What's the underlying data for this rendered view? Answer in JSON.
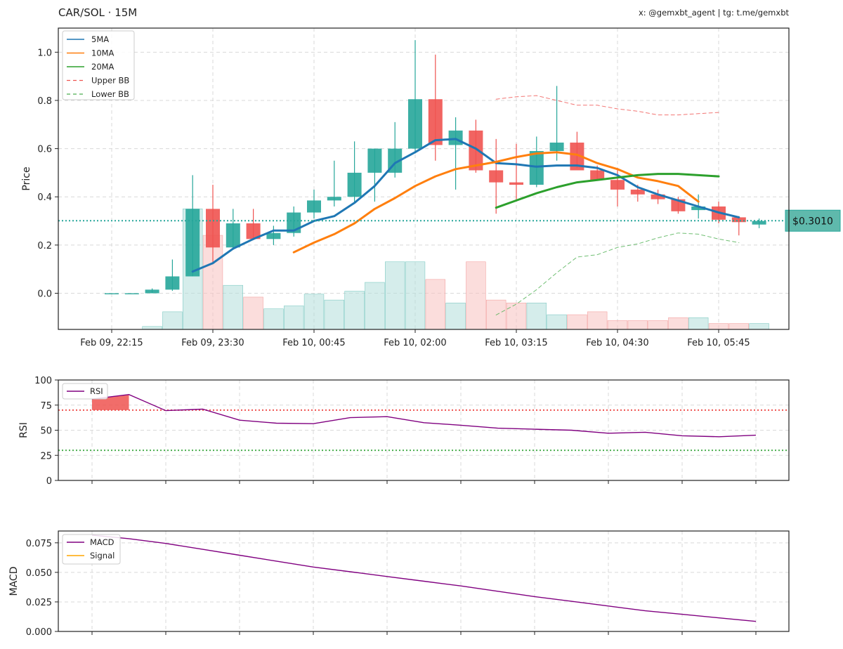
{
  "header": {
    "title": "CAR/SOL · 15M",
    "credits": "x: @gemxbt_agent | tg: t.me/gemxbt"
  },
  "colors": {
    "up": "#26a69a",
    "down": "#ef5350",
    "ma5": "#1f77b4",
    "ma10": "#ff7f0e",
    "ma20": "#2ca02c",
    "upper_bb": "#ef5350",
    "lower_bb": "#4caf50",
    "rsi": "#800080",
    "macd": "#800080",
    "signal": "#ffa500",
    "price_line": "#26a69a",
    "grid": "#d9d9d9"
  },
  "chart_data": [
    {
      "type": "candlestick",
      "ylabel": "Price",
      "ylim": [
        -0.15,
        1.1
      ],
      "yticks": [
        "0.0",
        "0.2",
        "0.4",
        "0.6",
        "0.8",
        "1.0"
      ],
      "x_tick_labels": [
        "Feb 09, 22:15",
        "Feb 09, 23:30",
        "Feb 10, 00:45",
        "Feb 10, 02:00",
        "Feb 10, 03:15",
        "Feb 10, 04:30",
        "Feb 10, 05:45"
      ],
      "candle_interval": "15M",
      "first_candle_time": "Feb 09, 22:00",
      "candles": [
        {
          "o": 0.0,
          "h": 0.0,
          "l": 0.0,
          "c": 0.0
        },
        {
          "o": 0.0,
          "h": 0.0,
          "l": 0.0,
          "c": 0.0
        },
        {
          "o": 0.0,
          "h": 0.02,
          "l": 0.0,
          "c": 0.015
        },
        {
          "o": 0.015,
          "h": 0.14,
          "l": 0.01,
          "c": 0.07
        },
        {
          "o": 0.07,
          "h": 0.49,
          "l": 0.07,
          "c": 0.35
        },
        {
          "o": 0.35,
          "h": 0.45,
          "l": 0.13,
          "c": 0.19
        },
        {
          "o": 0.19,
          "h": 0.35,
          "l": 0.18,
          "c": 0.29
        },
        {
          "o": 0.29,
          "h": 0.35,
          "l": 0.22,
          "c": 0.225
        },
        {
          "o": 0.225,
          "h": 0.28,
          "l": 0.2,
          "c": 0.25
        },
        {
          "o": 0.25,
          "h": 0.36,
          "l": 0.235,
          "c": 0.335
        },
        {
          "o": 0.335,
          "h": 0.43,
          "l": 0.31,
          "c": 0.385
        },
        {
          "o": 0.385,
          "h": 0.55,
          "l": 0.36,
          "c": 0.4
        },
        {
          "o": 0.4,
          "h": 0.63,
          "l": 0.38,
          "c": 0.5
        },
        {
          "o": 0.5,
          "h": 0.6,
          "l": 0.38,
          "c": 0.6
        },
        {
          "o": 0.5,
          "h": 0.71,
          "l": 0.48,
          "c": 0.6
        },
        {
          "o": 0.6,
          "h": 1.05,
          "l": 0.58,
          "c": 0.805
        },
        {
          "o": 0.805,
          "h": 0.99,
          "l": 0.55,
          "c": 0.615
        },
        {
          "o": 0.615,
          "h": 0.73,
          "l": 0.43,
          "c": 0.675
        },
        {
          "o": 0.675,
          "h": 0.72,
          "l": 0.5,
          "c": 0.51
        },
        {
          "o": 0.51,
          "h": 0.64,
          "l": 0.33,
          "c": 0.46
        },
        {
          "o": 0.46,
          "h": 0.62,
          "l": 0.39,
          "c": 0.45
        },
        {
          "o": 0.45,
          "h": 0.65,
          "l": 0.44,
          "c": 0.59
        },
        {
          "o": 0.59,
          "h": 0.86,
          "l": 0.55,
          "c": 0.625
        },
        {
          "o": 0.625,
          "h": 0.67,
          "l": 0.52,
          "c": 0.51
        },
        {
          "o": 0.51,
          "h": 0.53,
          "l": 0.47,
          "c": 0.47
        },
        {
          "o": 0.47,
          "h": 0.52,
          "l": 0.36,
          "c": 0.43
        },
        {
          "o": 0.43,
          "h": 0.45,
          "l": 0.38,
          "c": 0.41
        },
        {
          "o": 0.41,
          "h": 0.43,
          "l": 0.37,
          "c": 0.39
        },
        {
          "o": 0.39,
          "h": 0.4,
          "l": 0.33,
          "c": 0.34
        },
        {
          "o": 0.345,
          "h": 0.41,
          "l": 0.31,
          "c": 0.36
        },
        {
          "o": 0.36,
          "h": 0.38,
          "l": 0.29,
          "c": 0.305
        },
        {
          "o": 0.315,
          "h": 0.32,
          "l": 0.24,
          "c": 0.295
        },
        {
          "o": 0.285,
          "h": 0.31,
          "l": 0.27,
          "c": 0.3
        }
      ],
      "volume": [
        0,
        0,
        0.01,
        0.06,
        0.41,
        0.32,
        0.15,
        0.11,
        0.07,
        0.08,
        0.12,
        0.1,
        0.13,
        0.16,
        0.23,
        0.23,
        0.17,
        0.09,
        0.23,
        0.1,
        0.09,
        0.09,
        0.05,
        0.05,
        0.06,
        0.03,
        0.03,
        0.03,
        0.04,
        0.04,
        0.02,
        0.02,
        0.02
      ],
      "series": [
        {
          "name": "5MA",
          "values": [
            null,
            null,
            null,
            null,
            0.09,
            0.125,
            0.185,
            0.225,
            0.26,
            0.26,
            0.3,
            0.32,
            0.375,
            0.445,
            0.54,
            0.585,
            0.635,
            0.64,
            0.6,
            0.54,
            0.535,
            0.525,
            0.53,
            0.53,
            0.52,
            0.49,
            0.44,
            0.41,
            0.385,
            0.36,
            0.335,
            0.315,
            null
          ]
        },
        {
          "name": "10MA",
          "values": [
            null,
            null,
            null,
            null,
            null,
            null,
            null,
            null,
            null,
            0.17,
            0.21,
            0.245,
            0.29,
            0.35,
            0.395,
            0.445,
            0.485,
            0.515,
            0.53,
            0.545,
            0.565,
            0.58,
            0.585,
            0.575,
            0.54,
            0.515,
            0.48,
            0.465,
            0.445,
            0.38,
            null,
            null,
            null
          ]
        },
        {
          "name": "20MA",
          "values": [
            null,
            null,
            null,
            null,
            null,
            null,
            null,
            null,
            null,
            null,
            null,
            null,
            null,
            null,
            null,
            null,
            null,
            null,
            null,
            0.355,
            0.385,
            0.415,
            0.44,
            0.46,
            0.47,
            0.48,
            0.49,
            0.495,
            0.495,
            0.49,
            0.485,
            null,
            null
          ]
        },
        {
          "name": "Upper BB",
          "values": [
            null,
            null,
            null,
            null,
            null,
            null,
            null,
            null,
            null,
            null,
            null,
            null,
            null,
            null,
            null,
            null,
            null,
            null,
            null,
            0.805,
            0.815,
            0.82,
            0.8,
            0.78,
            0.78,
            0.765,
            0.755,
            0.74,
            0.74,
            0.745,
            0.75,
            null,
            null
          ]
        },
        {
          "name": "Lower BB",
          "values": [
            null,
            null,
            null,
            null,
            null,
            null,
            null,
            null,
            null,
            null,
            null,
            null,
            null,
            null,
            null,
            null,
            null,
            null,
            null,
            -0.09,
            -0.045,
            0.015,
            0.085,
            0.15,
            0.16,
            0.19,
            0.205,
            0.23,
            0.25,
            0.245,
            0.225,
            0.21,
            null
          ]
        }
      ],
      "legend": [
        "5MA",
        "10MA",
        "20MA",
        "Upper BB",
        "Lower BB"
      ],
      "legend_position": "top-left",
      "current_price": 0.301,
      "current_price_label": "$0.3010",
      "grid": true
    },
    {
      "type": "line",
      "ylabel": "RSI",
      "ylim": [
        0,
        100
      ],
      "yticks": [
        "0",
        "25",
        "50",
        "75",
        "100"
      ],
      "overbought": 70,
      "oversold": 30,
      "series": [
        {
          "name": "RSI",
          "values": [
            81,
            85.5,
            69.5,
            71,
            60,
            57,
            56.5,
            62.5,
            63.5,
            57.5,
            55,
            52,
            51,
            50,
            47,
            48,
            44.5,
            43.5,
            45
          ]
        }
      ],
      "legend_position": "top-left",
      "grid": true
    },
    {
      "type": "line",
      "ylabel": "MACD",
      "ylim": [
        0,
        0.085
      ],
      "yticks": [
        "0.000",
        "0.025",
        "0.050",
        "0.075"
      ],
      "series": [
        {
          "name": "MACD",
          "values": [
            0.0815,
            0.0785,
            0.0745,
            0.0695,
            0.0645,
            0.0595,
            0.0545,
            0.0505,
            0.0465,
            0.0425,
            0.0385,
            0.034,
            0.0295,
            0.0255,
            0.0215,
            0.0175,
            0.0145,
            0.0115,
            0.0085
          ]
        },
        {
          "name": "Signal",
          "values": []
        }
      ],
      "legend_position": "top-left",
      "grid": true
    }
  ]
}
